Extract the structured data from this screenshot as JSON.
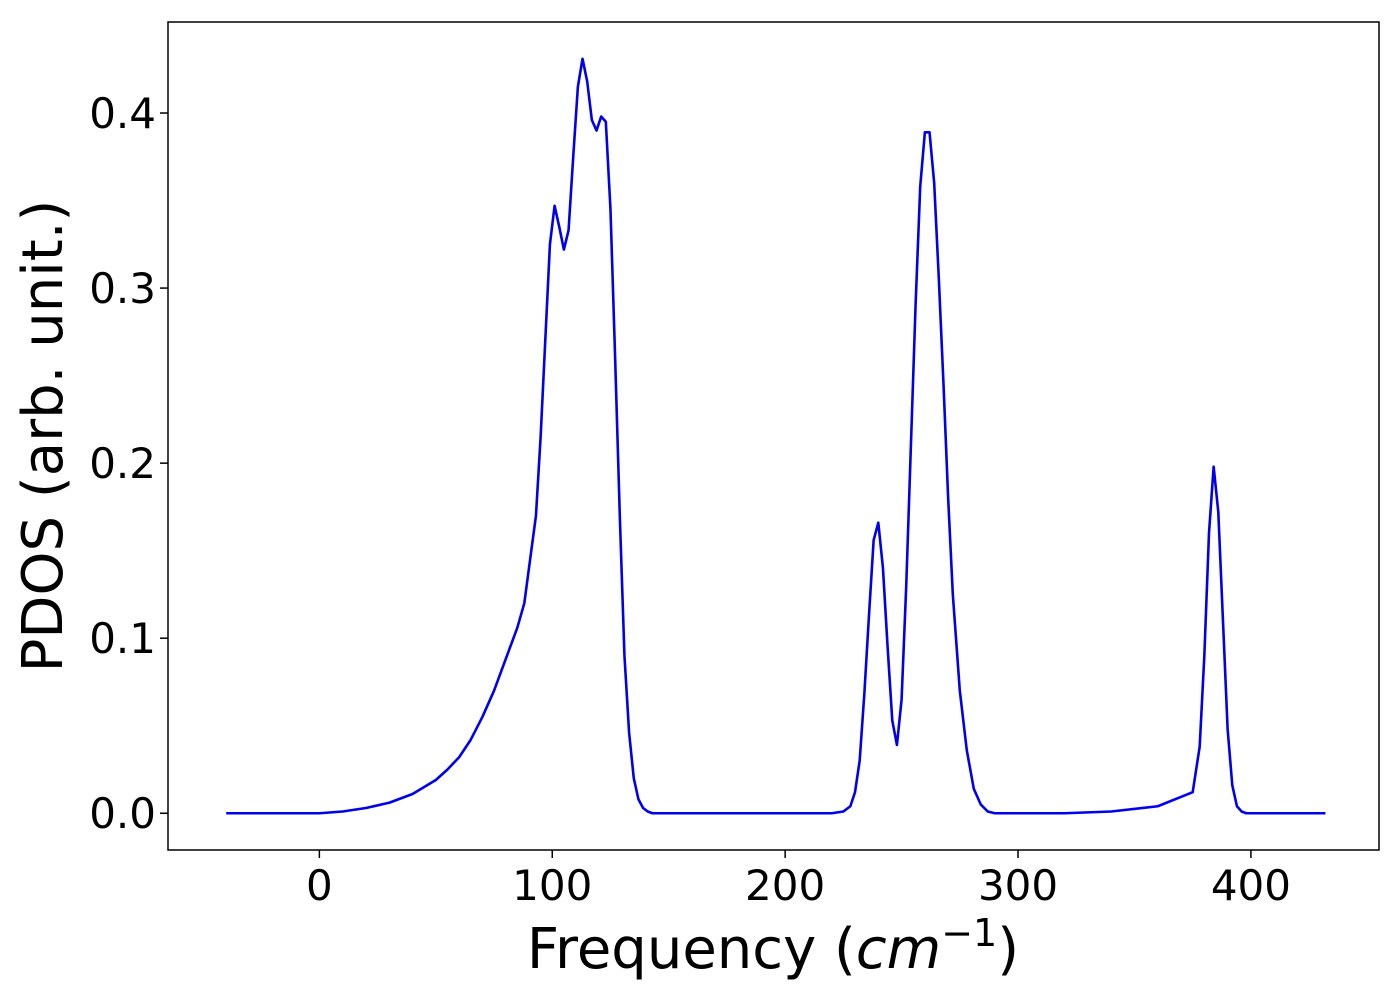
{
  "chart_data": {
    "type": "line",
    "xlabel_main": "Frequency (",
    "xlabel_unit": "cm",
    "xlabel_exp": "−1",
    "xlabel_end": ")",
    "ylabel": "PDOS (arb. unit.)",
    "xlim": [
      -65,
      455
    ],
    "ylim": [
      -0.021,
      0.452
    ],
    "x_ticks": [
      0,
      100,
      200,
      300,
      400
    ],
    "x_tick_labels": [
      "0",
      "100",
      "200",
      "300",
      "400"
    ],
    "y_ticks": [
      0.0,
      0.1,
      0.2,
      0.3,
      0.4
    ],
    "y_tick_labels": [
      "0.0",
      "0.1",
      "0.2",
      "0.3",
      "0.4"
    ],
    "grid": false,
    "line_color": "#0000ee",
    "series": [
      {
        "x": [
          -40,
          -30,
          -20,
          -10,
          0,
          10,
          20,
          30,
          40,
          50,
          55,
          60,
          65,
          70,
          75,
          80,
          85,
          88,
          90,
          93,
          95,
          97,
          99,
          101,
          103,
          105,
          107,
          109,
          111,
          113,
          115,
          117,
          119,
          121,
          123,
          125,
          127,
          129,
          131,
          133,
          135,
          137,
          139,
          141,
          143,
          145,
          147,
          150,
          160,
          180,
          200,
          220,
          225,
          228,
          230,
          232,
          234,
          236,
          238,
          240,
          242,
          244,
          246,
          248,
          250,
          252,
          254,
          256,
          258,
          260,
          262,
          264,
          266,
          268,
          270,
          272,
          275,
          278,
          281,
          284,
          287,
          290,
          292,
          294,
          296,
          298,
          300,
          320,
          340,
          360,
          375,
          378,
          380,
          382,
          384,
          386,
          388,
          390,
          392,
          394,
          396,
          398,
          400,
          402,
          404,
          410,
          420,
          432
        ],
        "y": [
          0.0,
          0.0,
          0.0,
          0.0,
          0.0,
          0.001,
          0.003,
          0.006,
          0.011,
          0.019,
          0.025,
          0.032,
          0.042,
          0.055,
          0.07,
          0.088,
          0.106,
          0.12,
          0.14,
          0.17,
          0.215,
          0.27,
          0.325,
          0.347,
          0.335,
          0.322,
          0.333,
          0.375,
          0.415,
          0.431,
          0.418,
          0.396,
          0.39,
          0.398,
          0.395,
          0.345,
          0.26,
          0.17,
          0.09,
          0.046,
          0.02,
          0.008,
          0.003,
          0.001,
          0.0,
          0.0,
          0.0,
          0.0,
          0.0,
          0.0,
          0.0,
          0.0,
          0.001,
          0.004,
          0.012,
          0.03,
          0.068,
          0.113,
          0.156,
          0.166,
          0.14,
          0.095,
          0.053,
          0.039,
          0.065,
          0.13,
          0.21,
          0.29,
          0.358,
          0.389,
          0.389,
          0.36,
          0.305,
          0.245,
          0.18,
          0.125,
          0.07,
          0.036,
          0.014,
          0.005,
          0.001,
          0.0,
          0.0,
          0.0,
          0.0,
          0.0,
          0.0,
          0.0,
          0.001,
          0.004,
          0.012,
          0.038,
          0.09,
          0.16,
          0.198,
          0.172,
          0.11,
          0.048,
          0.016,
          0.004,
          0.001,
          0.0,
          0.0,
          0.0,
          0.0,
          0.0,
          0.0,
          0.0
        ]
      }
    ]
  }
}
